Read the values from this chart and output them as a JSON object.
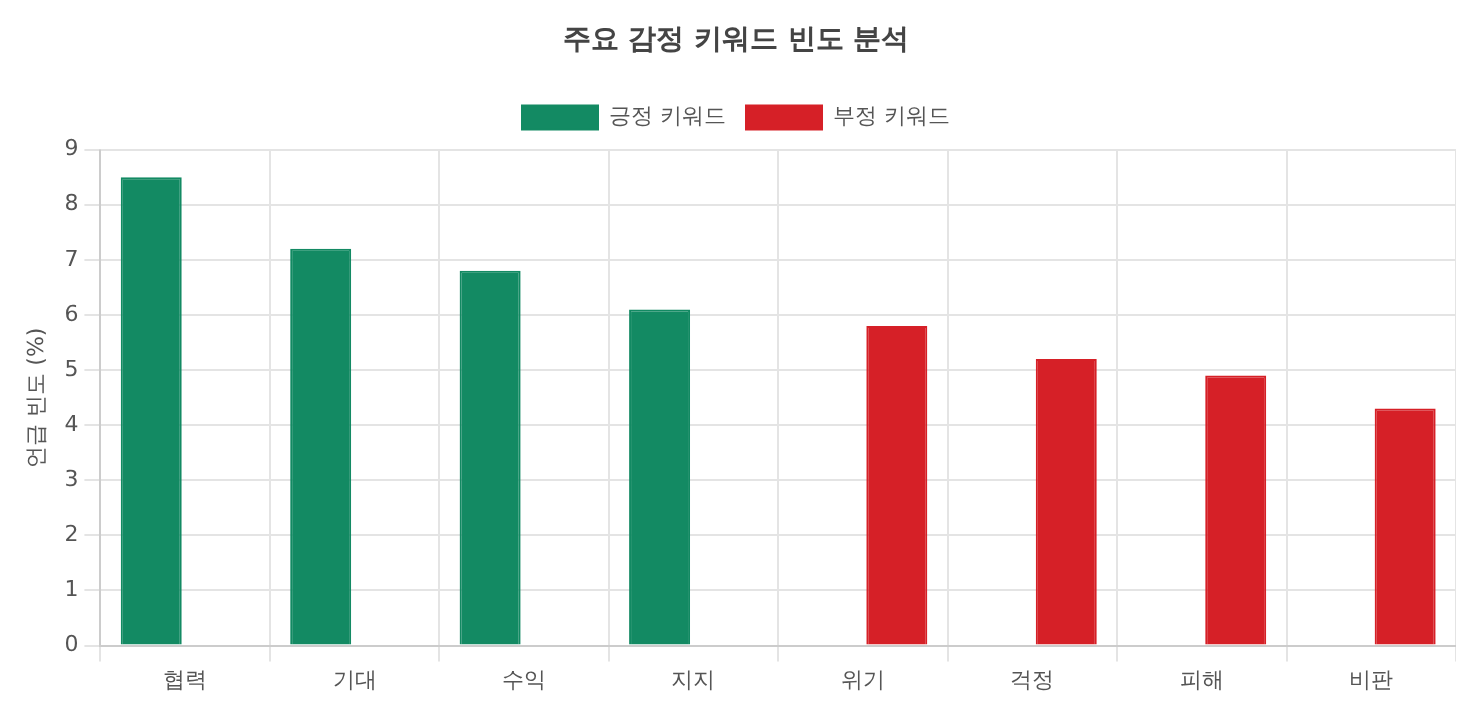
{
  "chart_data": {
    "type": "bar",
    "title": "주요 감정 키워드 빈도 분석",
    "ylabel": "언급 빈도 (%)",
    "categories": [
      "협력",
      "기대",
      "수익",
      "지지",
      "위기",
      "걱정",
      "피해",
      "비판"
    ],
    "series": [
      {
        "name": "긍정 키워드",
        "color": "#138a63",
        "values": [
          8.5,
          7.2,
          6.8,
          6.1,
          null,
          null,
          null,
          null
        ]
      },
      {
        "name": "부정 키워드",
        "color": "#d62027",
        "values": [
          null,
          null,
          null,
          null,
          5.8,
          5.2,
          4.9,
          4.3
        ]
      }
    ],
    "ylim": [
      0,
      9
    ],
    "yticks": [
      0,
      1,
      2,
      3,
      4,
      5,
      6,
      7,
      8,
      9
    ],
    "grid": true,
    "legend": "top"
  }
}
